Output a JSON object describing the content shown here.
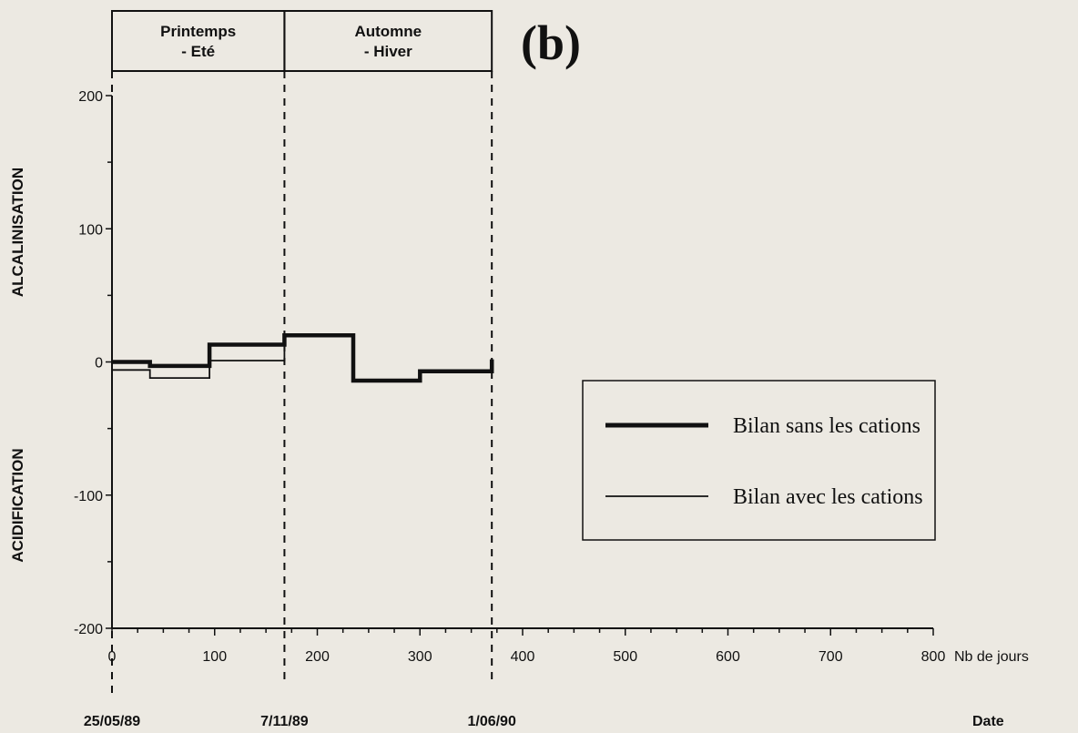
{
  "chart_data": {
    "type": "line",
    "panel_label": "(b)",
    "xlabel": "Nb de jours",
    "ylabel_positive": "ALCALINISATION",
    "ylabel_negative": "ACIDIFICATION",
    "date_label": "Date",
    "xlim": [
      0,
      800
    ],
    "ylim": [
      -200,
      200
    ],
    "x_ticks": [
      0,
      100,
      200,
      300,
      400,
      500,
      600,
      700,
      800
    ],
    "y_ticks": [
      -200,
      -100,
      0,
      100,
      200
    ],
    "seasons": [
      {
        "label_line1": "Printemps",
        "label_line2": "- Eté",
        "start": 0,
        "end": 168
      },
      {
        "label_line1": "Automne",
        "label_line2": "- Hiver",
        "start": 168,
        "end": 370
      }
    ],
    "date_markers": [
      {
        "x": 0,
        "label": "25/05/89"
      },
      {
        "x": 168,
        "label": "7/11/89"
      },
      {
        "x": 370,
        "label": "1/06/90"
      }
    ],
    "series": [
      {
        "name": "Bilan sans les cations",
        "style": "thick",
        "points": [
          [
            0,
            0
          ],
          [
            37,
            0
          ],
          [
            37,
            -3
          ],
          [
            95,
            -3
          ],
          [
            95,
            13
          ],
          [
            168,
            13
          ],
          [
            168,
            20
          ],
          [
            235,
            20
          ],
          [
            235,
            -14
          ],
          [
            300,
            -14
          ],
          [
            300,
            -7
          ],
          [
            370,
            -7
          ],
          [
            370,
            2
          ]
        ]
      },
      {
        "name": "Bilan avec les cations",
        "style": "thin",
        "points": [
          [
            0,
            -6
          ],
          [
            37,
            -6
          ],
          [
            37,
            -12
          ],
          [
            95,
            -12
          ],
          [
            95,
            1
          ],
          [
            168,
            1
          ],
          [
            168,
            20
          ],
          [
            235,
            20
          ],
          [
            235,
            -14
          ],
          [
            300,
            -14
          ],
          [
            300,
            -7
          ],
          [
            370,
            -7
          ]
        ]
      }
    ],
    "legend_position": "middle-right",
    "grid": false
  }
}
